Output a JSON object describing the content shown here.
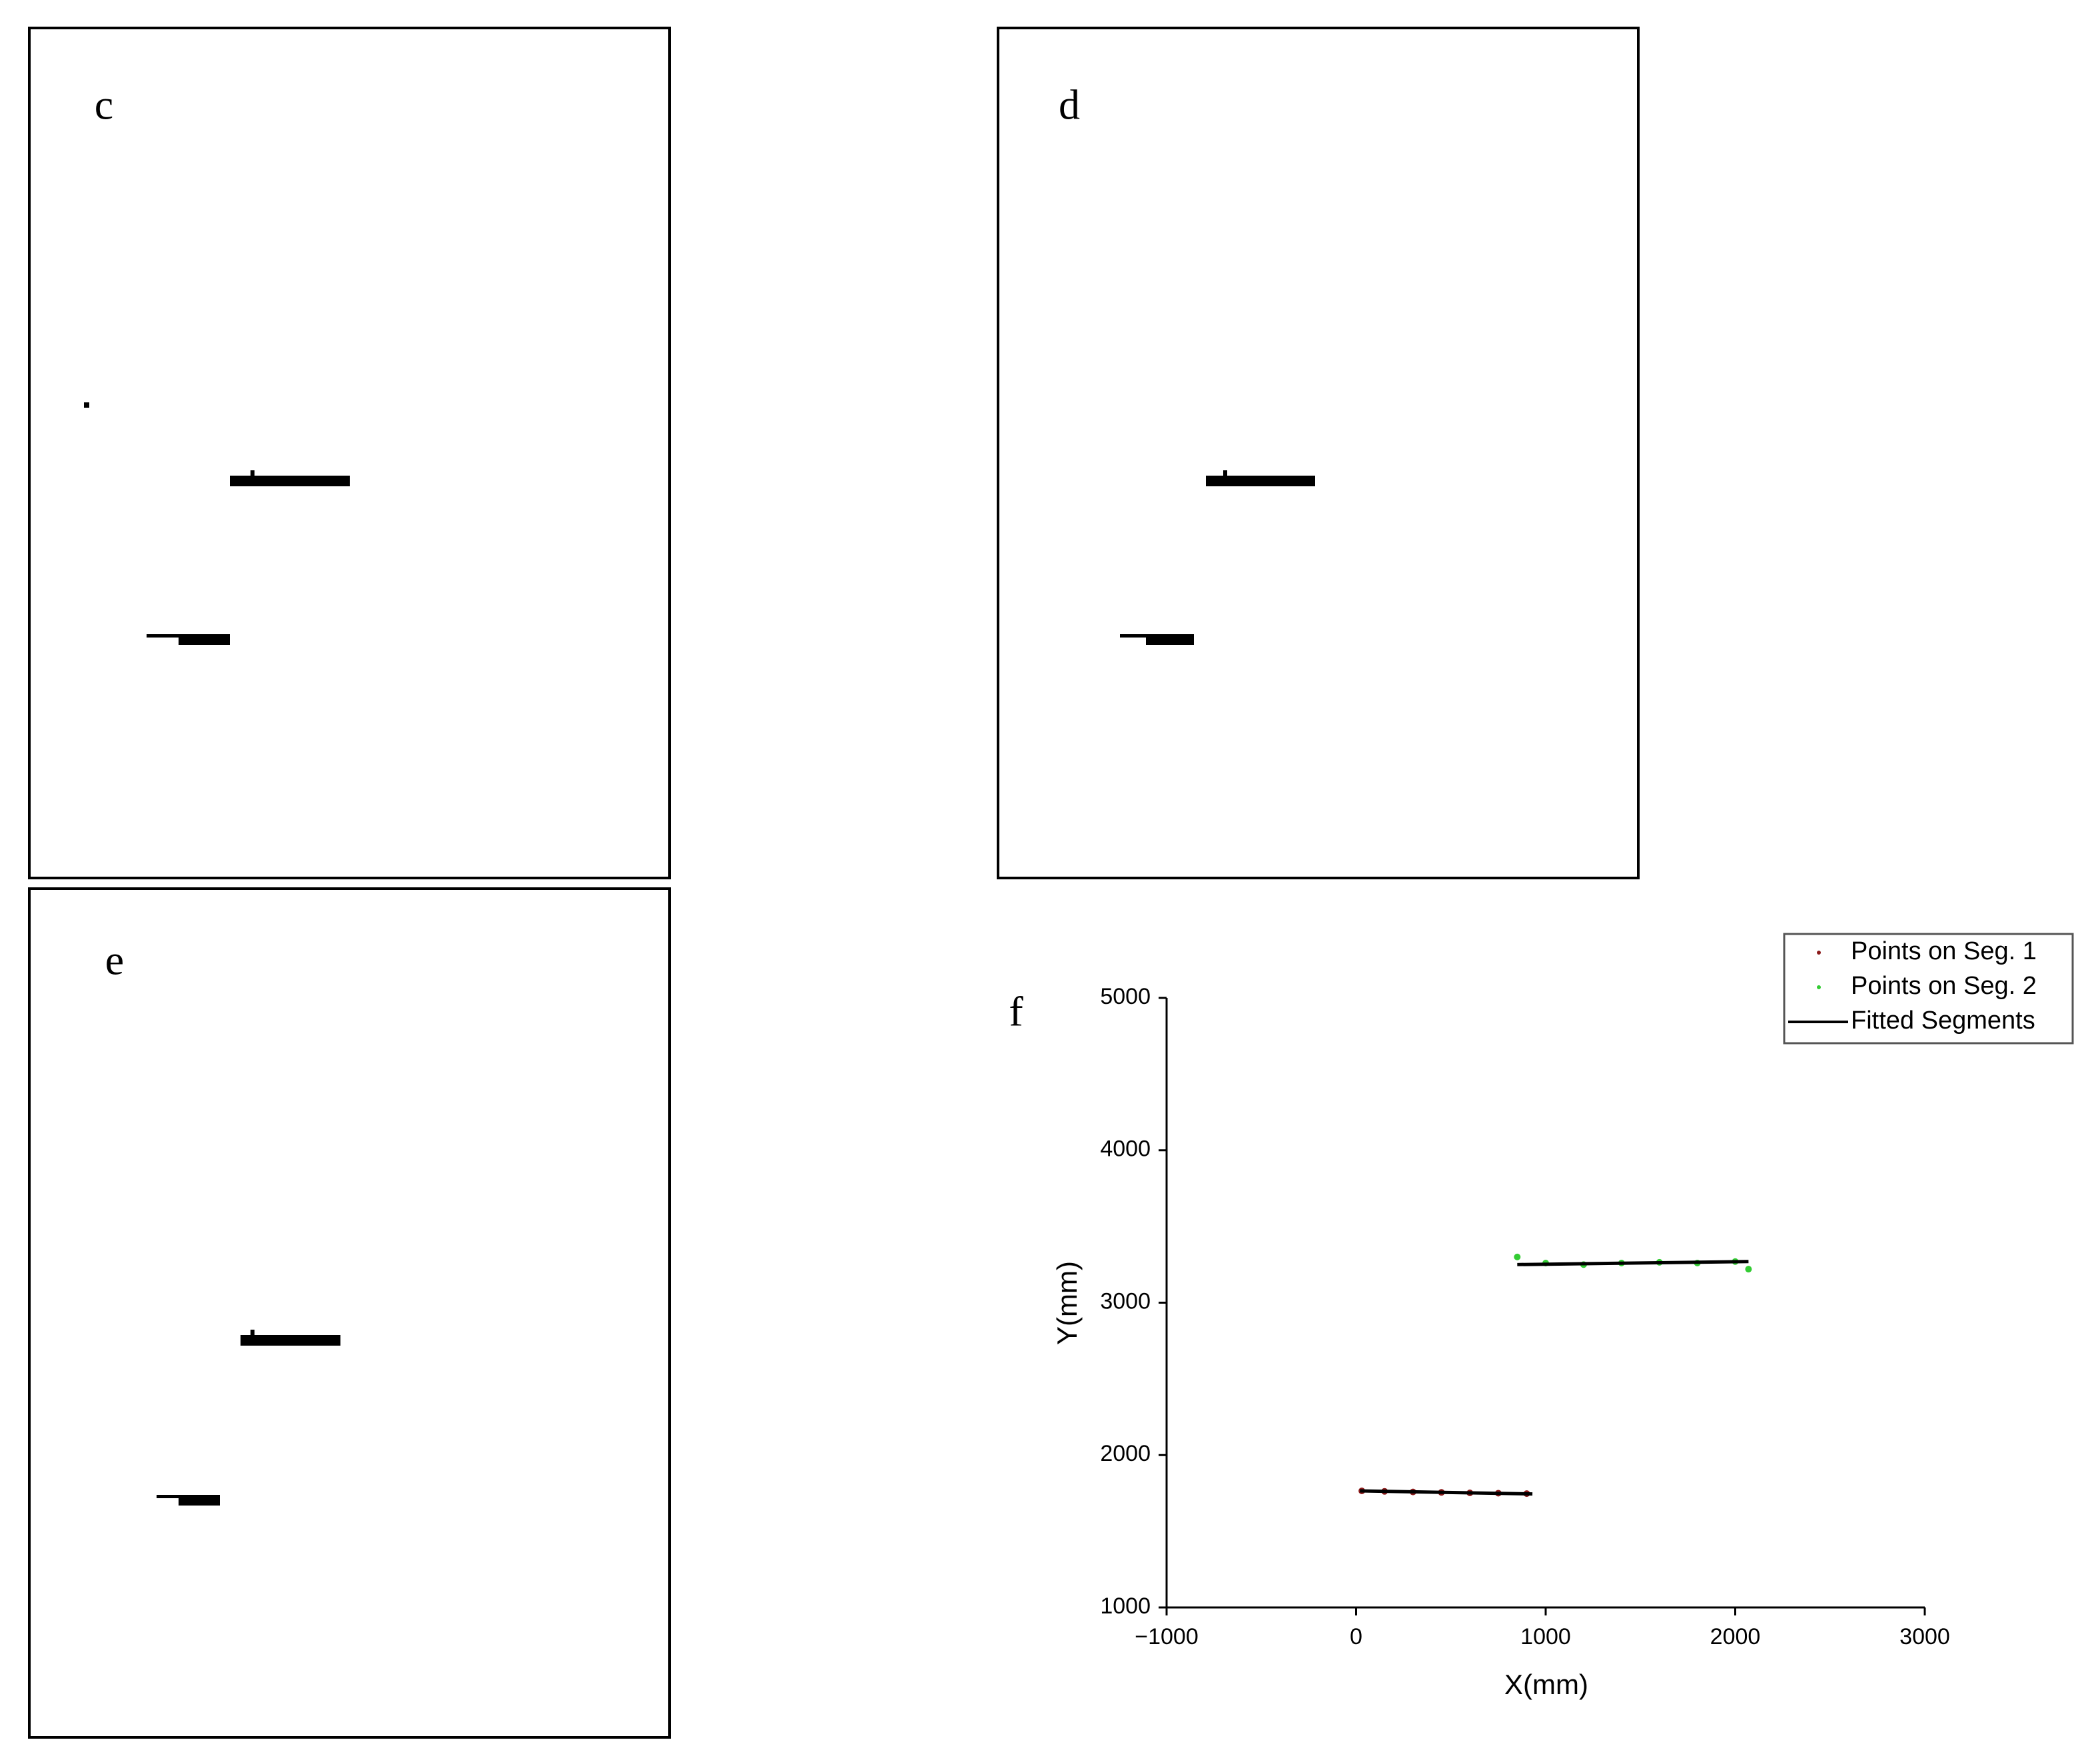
{
  "panels": [
    {
      "label": "c"
    },
    {
      "label": "d"
    },
    {
      "label": "e"
    }
  ],
  "chart_data": {
    "type": "scatter",
    "panel_label": "f",
    "x_label": "X(mm)",
    "y_label": "Y(mm)",
    "xlim": [
      -1000,
      3000
    ],
    "xticks": [
      {
        "value": -1000,
        "label": "−1000"
      },
      0,
      1000,
      2000,
      3000
    ],
    "ylim": [
      1000,
      5000
    ],
    "yticks": [
      1000,
      2000,
      3000,
      4000,
      5000
    ],
    "legend": "upper right",
    "series": [
      {
        "name": "Points on Seg. 1",
        "color": "#8b1a1a",
        "mode": "points",
        "x": [
          30,
          150,
          300,
          450,
          600,
          750,
          900
        ],
        "values": [
          1765,
          1762,
          1758,
          1755,
          1752,
          1750,
          1747
        ]
      },
      {
        "name": "Points on Seg. 2",
        "color": "#33cc33",
        "mode": "points",
        "x": [
          850,
          1000,
          1200,
          1400,
          1600,
          1800,
          2000,
          2070
        ],
        "values": [
          3300,
          3260,
          3250,
          3260,
          3265,
          3260,
          3270,
          3220
        ]
      },
      {
        "name": "Fitted Segments",
        "color": "#000000",
        "mode": "line",
        "x": [
          20,
          930,
          null,
          850,
          2070
        ],
        "values": [
          1765,
          1745,
          null,
          3250,
          3270
        ]
      }
    ]
  }
}
